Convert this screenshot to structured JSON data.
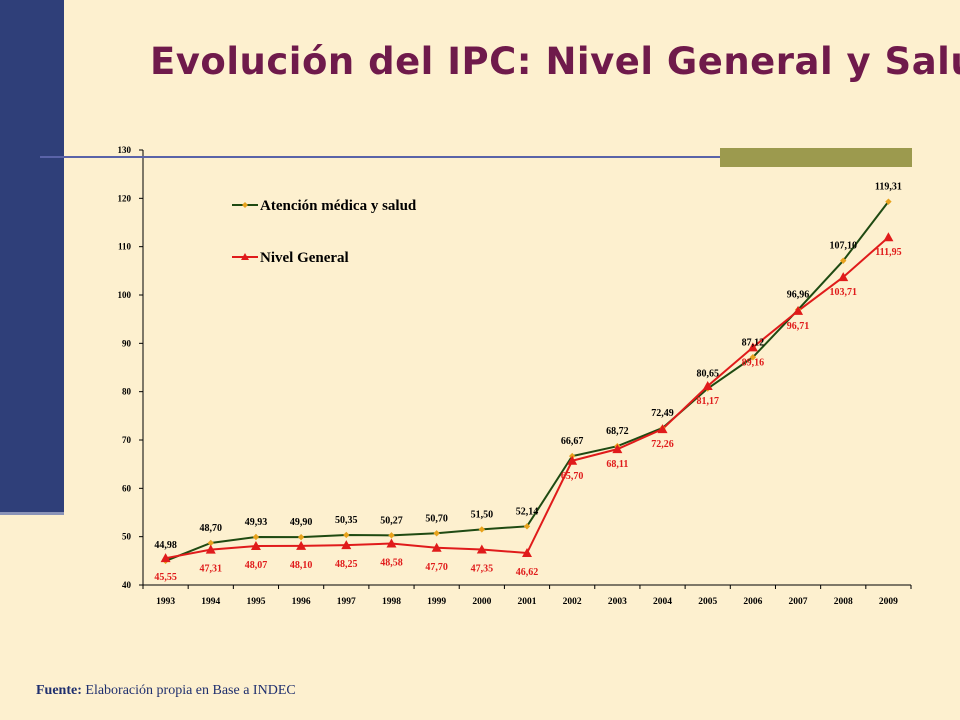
{
  "title": "Evolución del IPC: Nivel General y Salud",
  "source": {
    "label": "Fuente:",
    "text": "Elaboración propia en Base a INDEC"
  },
  "colors": {
    "background": "#fdf0cf",
    "sidebar": "#2f3f79",
    "title": "#6f1a4b",
    "rule": "#5a63a8",
    "olive_block": "#9c9a4e",
    "salud_line": "#1f4a12",
    "salud_marker": "#e8a21c",
    "general": "#e01b1b"
  },
  "chart_data": {
    "type": "line",
    "categories": [
      "1993",
      "1994",
      "1995",
      "1996",
      "1997",
      "1998",
      "1999",
      "2000",
      "2001",
      "2002",
      "2003",
      "2004",
      "2005",
      "2006",
      "2007",
      "2008",
      "2009"
    ],
    "ylim": [
      40,
      130
    ],
    "yticks": [
      40,
      50,
      60,
      70,
      80,
      90,
      100,
      110,
      120,
      130
    ],
    "grid": false,
    "legend_position": "top-left",
    "series": [
      {
        "name": "Atención médica y salud",
        "marker": "diamond",
        "values": [
          44.98,
          48.7,
          49.93,
          49.9,
          50.35,
          50.27,
          50.7,
          51.5,
          52.14,
          66.67,
          68.72,
          72.49,
          80.65,
          87.12,
          96.96,
          107.1,
          119.31
        ],
        "labels": [
          "44,98",
          "48,70",
          "49,93",
          "49,90",
          "50,35",
          "50,27",
          "50,70",
          "51,50",
          "52,14",
          "66,67",
          "68,72",
          "72,49",
          "80,65",
          "87,12",
          "96,96",
          "107,10",
          "119,31"
        ]
      },
      {
        "name": "Nivel General",
        "marker": "triangle",
        "values": [
          45.55,
          47.31,
          48.07,
          48.1,
          48.25,
          48.58,
          47.7,
          47.35,
          46.62,
          65.7,
          68.11,
          72.26,
          81.17,
          89.16,
          96.71,
          103.71,
          111.95
        ],
        "labels": [
          "45,55",
          "47,31",
          "48,07",
          "48,10",
          "48,25",
          "48,58",
          "47,70",
          "47,35",
          "46,62",
          "65,70",
          "68,11",
          "72,26",
          "81,17",
          "89,16",
          "96,71",
          "103,71",
          "111,95"
        ]
      }
    ]
  }
}
